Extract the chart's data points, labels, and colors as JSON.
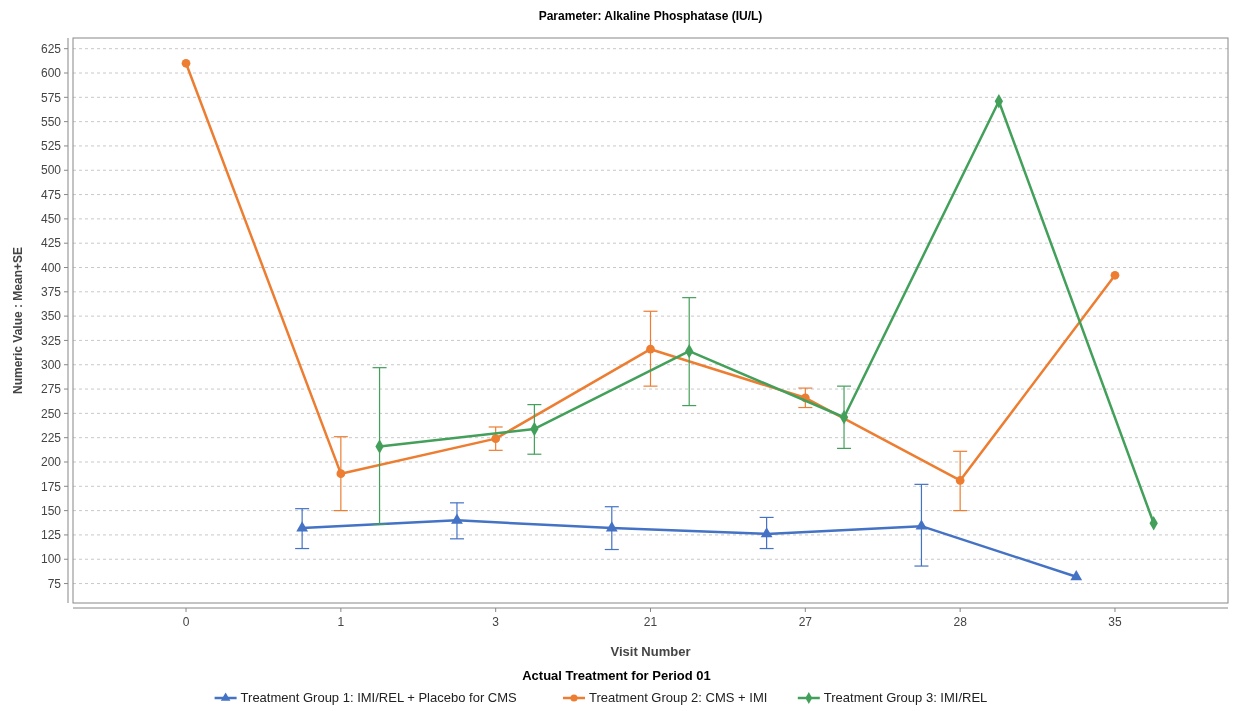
{
  "chart_data": {
    "type": "line",
    "title": "Parameter: Alkaline Phosphatase (IU/L)",
    "xlabel": "Visit Number",
    "ylabel": "Numeric Value : Mean+SE",
    "legend_title": "Actual Treatment for Period 01",
    "categories": [
      "0",
      "1",
      "3",
      "21",
      "27",
      "28",
      "35"
    ],
    "series": [
      {
        "name": "Treatment Group 1: IMI/REL + Placebo for CMS",
        "color": "#4472c4",
        "marker": "triangle",
        "values": [
          null,
          132,
          140,
          132,
          126,
          134,
          82
        ],
        "errors": [
          null,
          [
            111,
            152
          ],
          [
            121,
            158
          ],
          [
            110,
            154
          ],
          [
            111,
            143
          ],
          [
            93,
            177
          ],
          null
        ]
      },
      {
        "name": "Treatment Group 2: CMS + IMI",
        "color": "#ed7d31",
        "marker": "circle",
        "values": [
          610,
          188,
          224,
          316,
          266,
          181,
          392
        ],
        "errors": [
          null,
          [
            150,
            226
          ],
          [
            212,
            236
          ],
          [
            278,
            355
          ],
          [
            256,
            276
          ],
          [
            150,
            211
          ],
          null
        ]
      },
      {
        "name": "Treatment Group 3: IMI/REL",
        "color": "#43a05a",
        "marker": "diamond",
        "values": [
          null,
          216,
          234,
          314,
          246,
          571,
          137
        ],
        "errors": [
          null,
          [
            136,
            297
          ],
          [
            208,
            259
          ],
          [
            258,
            369
          ],
          [
            214,
            278
          ],
          null,
          null
        ]
      }
    ],
    "ylim": [
      55,
      636
    ],
    "yticks": [
      75,
      100,
      125,
      150,
      175,
      200,
      225,
      250,
      275,
      300,
      325,
      350,
      375,
      400,
      425,
      450,
      475,
      500,
      525,
      550,
      575,
      600,
      625
    ],
    "grid": "y",
    "legend": "bottom",
    "line_style": "solid"
  }
}
